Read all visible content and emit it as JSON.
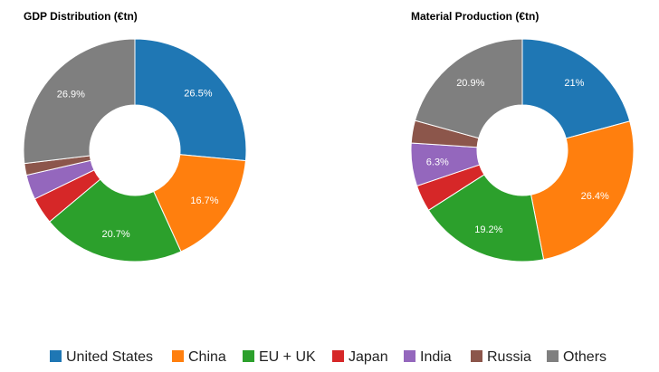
{
  "colors": {
    "United States": "#1f77b4",
    "China": "#ff7f0e",
    "EU + UK": "#2ca02c",
    "Japan": "#d62728",
    "India": "#9467bd",
    "Russia": "#8c564b",
    "Others": "#7f7f7f"
  },
  "legend": [
    "United States",
    "China",
    "EU + UK",
    "Japan",
    "India",
    "Russia",
    "Others"
  ],
  "chart_data": [
    {
      "type": "pie",
      "variant": "donut",
      "title": "GDP Distribution (€tn)",
      "categories": [
        "United States",
        "China",
        "EU + UK",
        "Japan",
        "India",
        "Russia",
        "Others"
      ],
      "values": [
        26.5,
        16.7,
        20.7,
        3.9,
        3.6,
        1.7,
        26.9
      ],
      "labels": [
        "26.5%",
        "16.7%",
        "20.7%",
        "",
        "",
        "",
        "26.9%"
      ],
      "start": "12 o'clock",
      "direction": "clockwise"
    },
    {
      "type": "pie",
      "variant": "donut",
      "title": "Material Production (€tn)",
      "categories": [
        "United States",
        "China",
        "EU + UK",
        "Japan",
        "India",
        "Russia",
        "Others"
      ],
      "values": [
        21,
        26.4,
        19.2,
        3.9,
        6.3,
        3.3,
        20.9
      ],
      "labels": [
        "21%",
        "26.4%",
        "19.2%",
        "",
        "6.3%",
        "",
        "20.9%"
      ],
      "start": "12 o'clock",
      "direction": "clockwise"
    }
  ]
}
